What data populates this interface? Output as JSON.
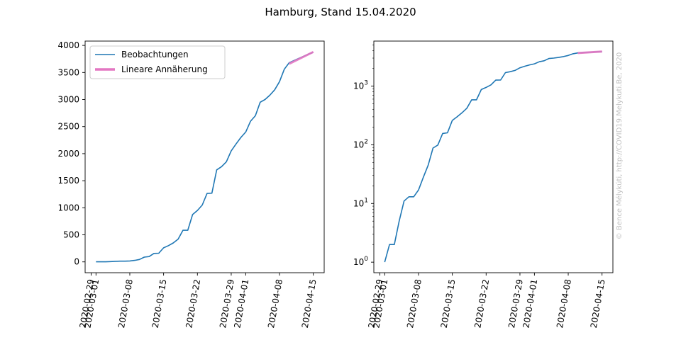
{
  "figure": {
    "title": "Hamburg, Stand 15.04.2020",
    "credit": "© Bence Mélykúti, http://COVID19.Melykuti.Be, 2020"
  },
  "chart_data": [
    {
      "type": "line",
      "yscale": "linear",
      "x_tick_labels": [
        "2020-02-29",
        "2020-03-01",
        "2020-03-08",
        "2020-03-15",
        "2020-03-22",
        "2020-03-29",
        "2020-04-01",
        "2020-04-08",
        "2020-04-15"
      ],
      "y_tick_labels": [
        "0",
        "500",
        "1000",
        "1500",
        "2000",
        "2500",
        "3000",
        "3500",
        "4000"
      ],
      "ylim": [
        -200,
        4080
      ],
      "legend": {
        "placement": "upper-left",
        "entries": [
          "Beobachtungen",
          "Lineare Annäherung"
        ]
      },
      "series": [
        {
          "name": "Beobachtungen",
          "color": "#1f77b4",
          "x": [
            "2020-03-01",
            "2020-03-02",
            "2020-03-03",
            "2020-03-04",
            "2020-03-05",
            "2020-03-06",
            "2020-03-07",
            "2020-03-08",
            "2020-03-09",
            "2020-03-10",
            "2020-03-11",
            "2020-03-12",
            "2020-03-13",
            "2020-03-14",
            "2020-03-15",
            "2020-03-16",
            "2020-03-17",
            "2020-03-18",
            "2020-03-19",
            "2020-03-20",
            "2020-03-21",
            "2020-03-22",
            "2020-03-23",
            "2020-03-24",
            "2020-03-25",
            "2020-03-26",
            "2020-03-27",
            "2020-03-28",
            "2020-03-29",
            "2020-03-30",
            "2020-03-31",
            "2020-04-01",
            "2020-04-02",
            "2020-04-03",
            "2020-04-04",
            "2020-04-05",
            "2020-04-06",
            "2020-04-07",
            "2020-04-08",
            "2020-04-09",
            "2020-04-10",
            "2020-04-11",
            "2020-04-12",
            "2020-04-13",
            "2020-04-14",
            "2020-04-15"
          ],
          "y": [
            1,
            2,
            2,
            5,
            11,
            13,
            13,
            17,
            28,
            45,
            88,
            99,
            156,
            160,
            260,
            300,
            350,
            420,
            584,
            584,
            875,
            950,
            1050,
            1265,
            1270,
            1700,
            1760,
            1850,
            2050,
            2180,
            2300,
            2400,
            2600,
            2700,
            2950,
            3000,
            3080,
            3180,
            3330,
            3560,
            3680,
            3720,
            3760,
            3800,
            3840,
            3870
          ]
        },
        {
          "name": "Lineare Annäherung",
          "color": "#e377c2",
          "x": [
            "2020-04-10",
            "2020-04-15"
          ],
          "y": [
            3660,
            3880
          ]
        }
      ]
    },
    {
      "type": "line",
      "yscale": "log",
      "x_tick_labels": [
        "2020-02-29",
        "2020-03-01",
        "2020-03-08",
        "2020-03-15",
        "2020-03-22",
        "2020-03-29",
        "2020-04-01",
        "2020-04-08",
        "2020-04-15"
      ],
      "y_tick_labels": [
        {
          "base": "10",
          "exp": "0"
        },
        {
          "base": "10",
          "exp": "1"
        },
        {
          "base": "10",
          "exp": "2"
        },
        {
          "base": "10",
          "exp": "3"
        }
      ],
      "series": [
        {
          "name": "Beobachtungen",
          "color": "#1f77b4",
          "x": [
            "2020-03-01",
            "2020-03-02",
            "2020-03-03",
            "2020-03-04",
            "2020-03-05",
            "2020-03-06",
            "2020-03-07",
            "2020-03-08",
            "2020-03-09",
            "2020-03-10",
            "2020-03-11",
            "2020-03-12",
            "2020-03-13",
            "2020-03-14",
            "2020-03-15",
            "2020-03-16",
            "2020-03-17",
            "2020-03-18",
            "2020-03-19",
            "2020-03-20",
            "2020-03-21",
            "2020-03-22",
            "2020-03-23",
            "2020-03-24",
            "2020-03-25",
            "2020-03-26",
            "2020-03-27",
            "2020-03-28",
            "2020-03-29",
            "2020-03-30",
            "2020-03-31",
            "2020-04-01",
            "2020-04-02",
            "2020-04-03",
            "2020-04-04",
            "2020-04-05",
            "2020-04-06",
            "2020-04-07",
            "2020-04-08",
            "2020-04-09",
            "2020-04-10",
            "2020-04-11",
            "2020-04-12",
            "2020-04-13",
            "2020-04-14",
            "2020-04-15"
          ],
          "y": [
            1,
            2,
            2,
            5,
            11,
            13,
            13,
            17,
            28,
            45,
            88,
            99,
            156,
            160,
            260,
            300,
            350,
            420,
            584,
            584,
            875,
            950,
            1050,
            1265,
            1270,
            1700,
            1760,
            1850,
            2050,
            2180,
            2300,
            2400,
            2600,
            2700,
            2950,
            3000,
            3080,
            3180,
            3330,
            3560,
            3680,
            3720,
            3760,
            3800,
            3840,
            3870
          ]
        },
        {
          "name": "Lineare Annäherung",
          "color": "#e377c2",
          "x": [
            "2020-04-10",
            "2020-04-15"
          ],
          "y": [
            3660,
            3880
          ]
        }
      ]
    }
  ]
}
